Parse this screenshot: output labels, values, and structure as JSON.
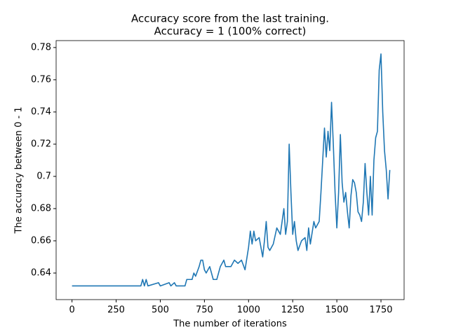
{
  "chart_data": {
    "type": "line",
    "title": [
      "Accuracy score from the last training.",
      "Accuracy = 1 (100% correct)"
    ],
    "x_label": "The number of iterations",
    "y_label": "The accuracy between 0 - 1",
    "x": [
      0,
      100,
      200,
      300,
      390,
      400,
      410,
      420,
      430,
      490,
      500,
      550,
      560,
      580,
      590,
      640,
      650,
      680,
      690,
      700,
      720,
      730,
      740,
      750,
      760,
      780,
      800,
      820,
      840,
      860,
      870,
      900,
      920,
      940,
      960,
      980,
      1000,
      1010,
      1020,
      1030,
      1040,
      1060,
      1080,
      1090,
      1100,
      1110,
      1120,
      1140,
      1160,
      1180,
      1200,
      1210,
      1220,
      1230,
      1240,
      1250,
      1260,
      1270,
      1280,
      1300,
      1320,
      1330,
      1340,
      1350,
      1370,
      1380,
      1400,
      1410,
      1420,
      1430,
      1440,
      1450,
      1460,
      1470,
      1480,
      1490,
      1500,
      1510,
      1520,
      1530,
      1540,
      1550,
      1560,
      1570,
      1580,
      1590,
      1600,
      1610,
      1620,
      1630,
      1640,
      1650,
      1660,
      1670,
      1680,
      1690,
      1700,
      1710,
      1720,
      1730,
      1740,
      1750,
      1760,
      1770,
      1780,
      1790,
      1800
    ],
    "series": [
      {
        "name": "accuracy",
        "color": "#1f77b4",
        "values": [
          0.632,
          0.632,
          0.632,
          0.632,
          0.632,
          0.636,
          0.632,
          0.636,
          0.632,
          0.634,
          0.632,
          0.634,
          0.632,
          0.634,
          0.632,
          0.632,
          0.636,
          0.636,
          0.64,
          0.638,
          0.644,
          0.648,
          0.648,
          0.642,
          0.64,
          0.644,
          0.636,
          0.636,
          0.644,
          0.648,
          0.644,
          0.644,
          0.648,
          0.646,
          0.648,
          0.642,
          0.656,
          0.666,
          0.658,
          0.666,
          0.66,
          0.662,
          0.65,
          0.66,
          0.672,
          0.656,
          0.654,
          0.658,
          0.668,
          0.664,
          0.68,
          0.664,
          0.672,
          0.72,
          0.69,
          0.664,
          0.672,
          0.66,
          0.654,
          0.66,
          0.662,
          0.654,
          0.668,
          0.658,
          0.672,
          0.668,
          0.672,
          0.69,
          0.71,
          0.73,
          0.712,
          0.728,
          0.716,
          0.746,
          0.72,
          0.69,
          0.668,
          0.69,
          0.726,
          0.696,
          0.684,
          0.69,
          0.678,
          0.668,
          0.688,
          0.698,
          0.696,
          0.69,
          0.678,
          0.676,
          0.672,
          0.684,
          0.708,
          0.69,
          0.676,
          0.7,
          0.676,
          0.71,
          0.724,
          0.728,
          0.766,
          0.776,
          0.74,
          0.716,
          0.704,
          0.686,
          0.704
        ]
      }
    ],
    "xlim": [
      -90,
      1881
    ],
    "ylim": [
      0.6235,
      0.7843
    ],
    "xticks": [
      0,
      250,
      500,
      750,
      1000,
      1250,
      1500,
      1750
    ],
    "yticks": [
      0.64,
      0.66,
      0.68,
      0.7,
      0.72,
      0.74,
      0.76,
      0.78
    ]
  }
}
